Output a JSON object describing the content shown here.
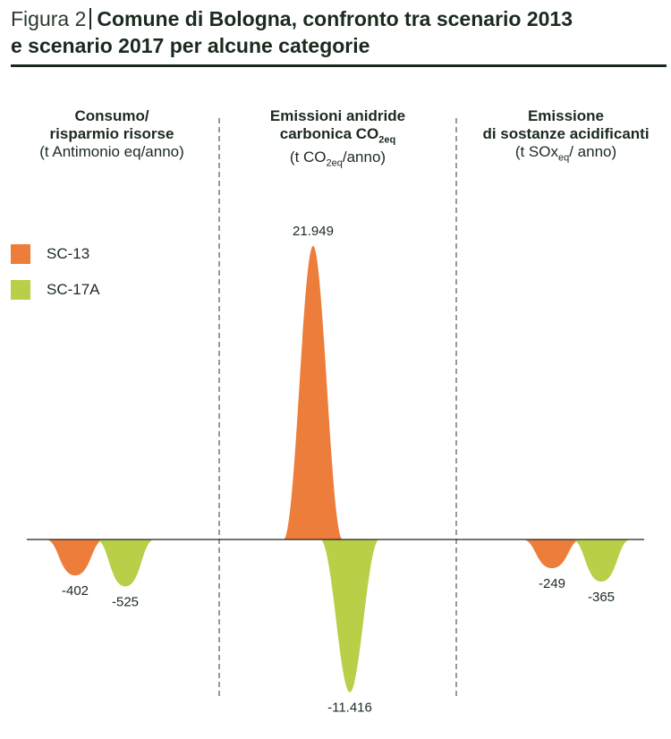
{
  "figure": {
    "label": "Figura 2",
    "title_line1": "Comune di Bologna, confronto tra scenario 2013",
    "title_line2": "e scenario 2017 per alcune categorie"
  },
  "panels": [
    {
      "line1": "Consumo/",
      "line2": "risparmio risorse",
      "line3": "(t Antimonio eq/anno)"
    },
    {
      "line1": "Emissioni anidride",
      "line2_pre": "carbonica CO",
      "line2_sub": "2eq",
      "line3_pre": "(t CO",
      "line3_sub": "2eq",
      "line3_post": "/anno)"
    },
    {
      "line1": "Emissione",
      "line2": "di sostanze acidificanti",
      "line3_pre": "(t SOx",
      "line3_sub": "eq",
      "line3_post": "/ anno)"
    }
  ],
  "legend": [
    {
      "label": "SC-13",
      "color": "#ed7d3a"
    },
    {
      "label": "SC-17A",
      "color": "#b8cf47"
    }
  ],
  "chart_data": {
    "type": "area",
    "categories": [
      "Consumo/risparmio risorse",
      "Emissioni anidride carbonica CO2eq",
      "Emissione di sostanze acidificanti"
    ],
    "series": [
      {
        "name": "SC-13",
        "values": [
          -402,
          21949,
          -249
        ],
        "labels": [
          "-402",
          "21.949",
          "-249"
        ]
      },
      {
        "name": "SC-17A",
        "values": [
          -525,
          -11416,
          -365
        ],
        "labels": [
          "-525",
          "-11.416",
          "-365"
        ]
      }
    ],
    "grid": false,
    "legend_position": "left"
  }
}
